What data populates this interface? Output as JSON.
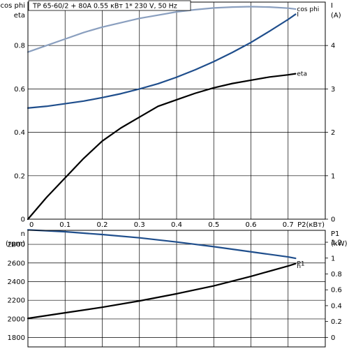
{
  "header": "TP 65-60/2 + 80A    0.55 кВт    1* 230 V, 50 Hz",
  "chart_data": [
    {
      "type": "line",
      "x_label": "P2(кВт)",
      "x_ticks": [
        "0",
        "0.1",
        "0.2",
        "0.3",
        "0.4",
        "0.5",
        "0.6",
        "0.7"
      ],
      "xlim": [
        0,
        0.8
      ],
      "left_axis": {
        "label_lines": [
          "cos phi",
          "eta"
        ],
        "ticks": [
          "0",
          "0.2",
          "0.4",
          "0.6",
          "0.8"
        ],
        "ylim": [
          0,
          1.0
        ]
      },
      "right_axis": {
        "label_lines": [
          "I",
          "(A)"
        ],
        "ticks": [
          "0",
          "1",
          "2",
          "3",
          "4"
        ],
        "ylim": [
          0,
          5
        ]
      },
      "grid": true,
      "series": [
        {
          "name": "cos phi",
          "axis": "left",
          "color": "#8a9fbf",
          "label_color": "#8a9fbf",
          "x": [
            0,
            0.05,
            0.1,
            0.15,
            0.2,
            0.25,
            0.3,
            0.35,
            0.4,
            0.45,
            0.5,
            0.55,
            0.6,
            0.65,
            0.7,
            0.72
          ],
          "y": [
            0.77,
            0.8,
            0.83,
            0.86,
            0.885,
            0.905,
            0.925,
            0.94,
            0.955,
            0.965,
            0.973,
            0.977,
            0.979,
            0.977,
            0.972,
            0.968
          ]
        },
        {
          "name": "I",
          "axis": "right",
          "color": "#1f4e8c",
          "label_color": "#1f4e8c",
          "x": [
            0,
            0.05,
            0.1,
            0.15,
            0.2,
            0.25,
            0.3,
            0.35,
            0.4,
            0.45,
            0.5,
            0.55,
            0.6,
            0.65,
            0.7,
            0.72
          ],
          "y": [
            2.56,
            2.6,
            2.66,
            2.72,
            2.8,
            2.89,
            3.0,
            3.12,
            3.27,
            3.44,
            3.63,
            3.84,
            4.07,
            4.33,
            4.6,
            4.72
          ]
        },
        {
          "name": "eta",
          "axis": "left",
          "color": "#000000",
          "label_color": "#000000",
          "x": [
            0,
            0.05,
            0.1,
            0.15,
            0.2,
            0.25,
            0.3,
            0.35,
            0.4,
            0.45,
            0.5,
            0.55,
            0.6,
            0.65,
            0.7,
            0.72
          ],
          "y": [
            0,
            0.1,
            0.19,
            0.28,
            0.36,
            0.42,
            0.47,
            0.52,
            0.55,
            0.58,
            0.605,
            0.625,
            0.64,
            0.655,
            0.665,
            0.67
          ]
        }
      ]
    },
    {
      "type": "line",
      "xlim": [
        0,
        0.8
      ],
      "left_axis": {
        "label_lines": [
          "n",
          "(rpm)"
        ],
        "ticks": [
          "1800",
          "2000",
          "2200",
          "2400",
          "2600",
          "2800"
        ],
        "ylim": [
          1700,
          2950
        ]
      },
      "right_axis": {
        "label_lines": [
          "P1",
          "(kW)"
        ],
        "ticks": [
          "0",
          "0.2",
          "0.4",
          "0.6",
          "0.8",
          "1",
          "1.2"
        ],
        "ylim": [
          -0.12,
          1.35
        ]
      },
      "grid": true,
      "series": [
        {
          "name": "n",
          "axis": "left",
          "color": "#1f4e8c",
          "label_color": "#1f6fb8",
          "x": [
            0,
            0.1,
            0.2,
            0.3,
            0.4,
            0.5,
            0.6,
            0.7,
            0.72
          ],
          "y": [
            2955,
            2935,
            2905,
            2870,
            2825,
            2775,
            2720,
            2665,
            2650
          ]
        },
        {
          "name": "P1",
          "axis": "right",
          "color": "#000000",
          "label_color": "#000000",
          "x": [
            0,
            0.1,
            0.2,
            0.3,
            0.4,
            0.5,
            0.6,
            0.7,
            0.72
          ],
          "y": [
            0.24,
            0.31,
            0.38,
            0.46,
            0.55,
            0.65,
            0.77,
            0.9,
            0.93
          ]
        }
      ]
    }
  ]
}
